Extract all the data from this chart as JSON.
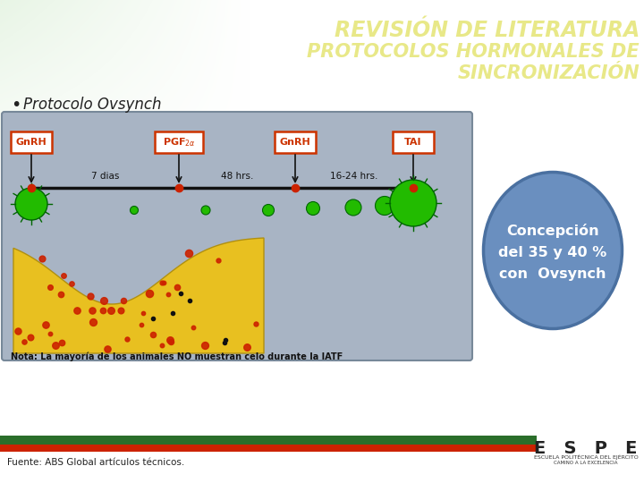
{
  "title_line1": "REVISIÓN DE LITERATURA",
  "title_line2": "PROTOCOLOS HORMONALES DE",
  "title_line3": "SINCRONIZACIÓN",
  "title_color": "#e8e888",
  "bullet_text": "Protocolo Ovsynch",
  "circle_text_line1": "Concepción",
  "circle_text_line2": "del 35 y 40 %",
  "circle_text_line3": "con  Ovsynch",
  "circle_color": "#6a8fbf",
  "circle_edge_color": "#4a70a0",
  "footer_text": "Fuente: ABS Global artículos técnicos.",
  "diagram_bg": "#a8b4c4",
  "gnrh_box_color": "#cc3300",
  "gnrh_text_color": "#cc3300",
  "diagram_note": "Nota: La mayoría de los animales NO muestran celo durante la IATF",
  "diagram_yellow_color": "#e8c020",
  "diagram_red_dots": "#cc2200",
  "diagram_green_dots": "#22bb00",
  "bar_green": "#2a6e2a",
  "bar_red": "#cc2200"
}
